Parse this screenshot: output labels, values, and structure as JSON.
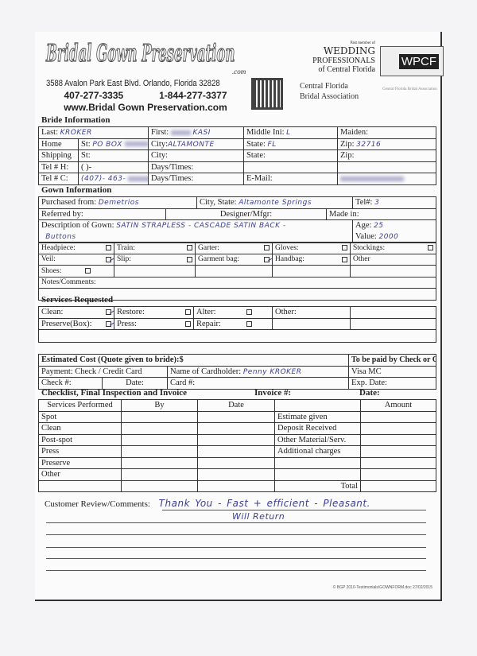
{
  "header": {
    "logo_text": "Bridal Gown Preservation",
    "logo_suffix": ".com",
    "address": "3588 Avalon Park East Blvd. Orlando, Florida 32828",
    "phone_1": "407-277-3335",
    "phone_2": "1-844-277-3377",
    "website": "www.Bridal Gown Preservation.com",
    "wp_member": "Past member of",
    "wp_line1": "WEDDING",
    "wp_line2": "PROFESSIONALS",
    "wp_line3": "of Central Florida",
    "cfba_line1": "Central Florida",
    "cfba_line2": "Bridal Association",
    "wpcf_logo": "WPCF",
    "cfba_logo": "Central Florida Bridal Association"
  },
  "bride": {
    "heading": "Bride Information",
    "last_label": "Last:",
    "last_value": "KROKER",
    "first_label": "First:",
    "first_value": "KASI",
    "middle_label": "Middle Ini:",
    "middle_value": "L",
    "maiden_label": "Maiden:",
    "home_label": "Home",
    "st_label": "St:",
    "home_st_value": "PO BOX",
    "city_label": "City:",
    "home_city_value": "ALTAMONTE",
    "state_label": "State:",
    "home_state_value": "FL",
    "zip_label": "Zip:",
    "home_zip_value": "32716",
    "shipping_label": "Shipping",
    "telh_label": "Tel # H:",
    "telh_value": "(     )-",
    "days_label": "Days/Times:",
    "telc_label": "Tel # C:",
    "telc_value": "(407)- 463-",
    "email_label": "E-Mail:"
  },
  "gown": {
    "heading": "Gown Information",
    "purchased_label": "Purchased from:",
    "purchased_value": "Demetrios",
    "citystate_label": "City, State:",
    "citystate_value": "Altamonte Springs",
    "tel_label": "Tel#:",
    "tel_value": "3",
    "referred_label": "Referred by:",
    "designer_label": "Designer/Mfgr:",
    "madein_label": "Made in:",
    "description_label": "Description of Gown:",
    "description_value": "SATIN STRAPLESS - CASCADE SATIN BACK -",
    "description_value_2": "Buttons",
    "age_label": "Age:",
    "age_value": "25",
    "value_label": "Value:",
    "value_value": "2000",
    "items": [
      {
        "label": "Headpiece:",
        "checked": false
      },
      {
        "label": "Train:",
        "checked": false
      },
      {
        "label": "Garter:",
        "checked": false
      },
      {
        "label": "Gloves:",
        "checked": false
      },
      {
        "label": "Stockings:",
        "checked": false
      },
      {
        "label": "Veil:",
        "checked": true
      },
      {
        "label": "Slip:",
        "checked": false
      },
      {
        "label": "Garment bag:",
        "checked": true
      },
      {
        "label": "Handbag:",
        "checked": false
      },
      {
        "label": "Other"
      },
      {
        "label": "Shoes:",
        "checked": false
      }
    ],
    "notes_label": "Notes/Comments:"
  },
  "services": {
    "heading": "Services Requested",
    "items": [
      {
        "label": "Clean:",
        "checked": true
      },
      {
        "label": "Restore:",
        "checked": false
      },
      {
        "label": "Alter:",
        "checked": false
      },
      {
        "label": "Other:"
      },
      {
        "label": "Preserve(Box):",
        "checked": true
      },
      {
        "label": "Press:",
        "checked": false
      },
      {
        "label": "Repair:",
        "checked": false
      }
    ]
  },
  "cost": {
    "estimated_label": "Estimated Cost (Quote given to bride):$",
    "paid_by_label": "To be paid by Check or Credit Card",
    "payment_label": "Payment:  Check / Credit Card",
    "cardholder_label": "Name of Cardholder:",
    "cardholder_value": "Penny KROKER",
    "visa_mc": "Visa MC",
    "check_label": "Check #:",
    "date_label": "Date:",
    "card_label": "Card #:",
    "exp_label": "Exp. Date:"
  },
  "checklist": {
    "heading": "Checklist, Final Inspection and Invoice",
    "invoice_label": "Invoice #:",
    "date_label": "Date:",
    "columns": [
      "Services Performed",
      "By",
      "Date",
      "",
      "Amount"
    ],
    "services": [
      "Spot",
      "Clean",
      "Post-spot",
      "Press",
      "Preserve",
      "Other",
      ""
    ],
    "charges": [
      "Estimate given",
      "Deposit Received",
      "Other Material/Serv.",
      "Additional charges",
      "",
      "",
      "Total"
    ]
  },
  "review": {
    "label": "Customer Review/Comments:",
    "line1": "Thank You  -  Fast + efficient  - Pleasant.",
    "line2": "Will Return"
  },
  "footer": "© BGP 2010-Testimonials\\GOWNFORM.doc 27/02/2015"
}
